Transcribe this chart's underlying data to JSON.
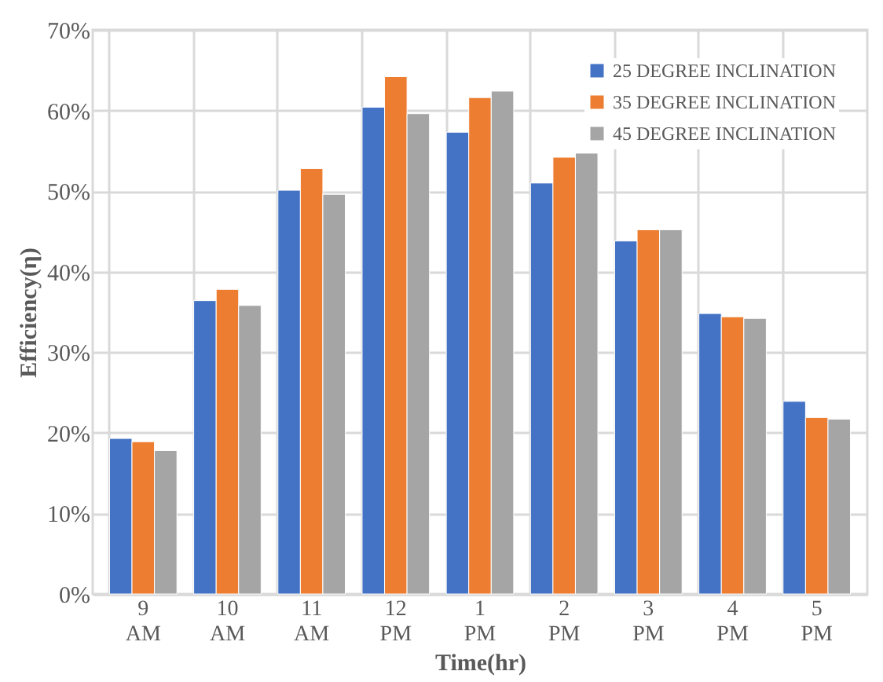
{
  "chart_data": {
    "type": "bar",
    "xlabel": "Time(hr)",
    "ylabel": "Efficiency(η)",
    "categories": [
      "9 AM",
      "10 AM",
      "11 AM",
      "12 PM",
      "1 PM",
      "2 PM",
      "3 PM",
      "4 PM",
      "5 PM"
    ],
    "series": [
      {
        "name": "25 DEGREE INCLINATION",
        "color": "#4472c4",
        "values": [
          19.3,
          36.4,
          50.1,
          60.4,
          57.3,
          51.0,
          43.8,
          34.8,
          23.9
        ]
      },
      {
        "name": "35 DEGREE INCLINATION",
        "color": "#ed7d31",
        "values": [
          18.9,
          37.8,
          52.8,
          64.2,
          61.6,
          54.2,
          45.2,
          34.4,
          21.9
        ]
      },
      {
        "name": "45 DEGREE INCLINATION",
        "color": "#a5a5a5",
        "values": [
          17.8,
          35.8,
          49.6,
          59.6,
          62.4,
          54.7,
          45.2,
          34.2,
          21.7
        ]
      }
    ],
    "ylim": [
      0,
      70
    ],
    "yticks": [
      {
        "value": 0,
        "label": "0%"
      },
      {
        "value": 10,
        "label": "10%"
      },
      {
        "value": 20,
        "label": "20%"
      },
      {
        "value": 30,
        "label": "30%"
      },
      {
        "value": 40,
        "label": "40%"
      },
      {
        "value": 50,
        "label": "50%"
      },
      {
        "value": 60,
        "label": "60%"
      },
      {
        "value": 70,
        "label": "70%"
      }
    ],
    "grid": true,
    "legend": "top right"
  }
}
